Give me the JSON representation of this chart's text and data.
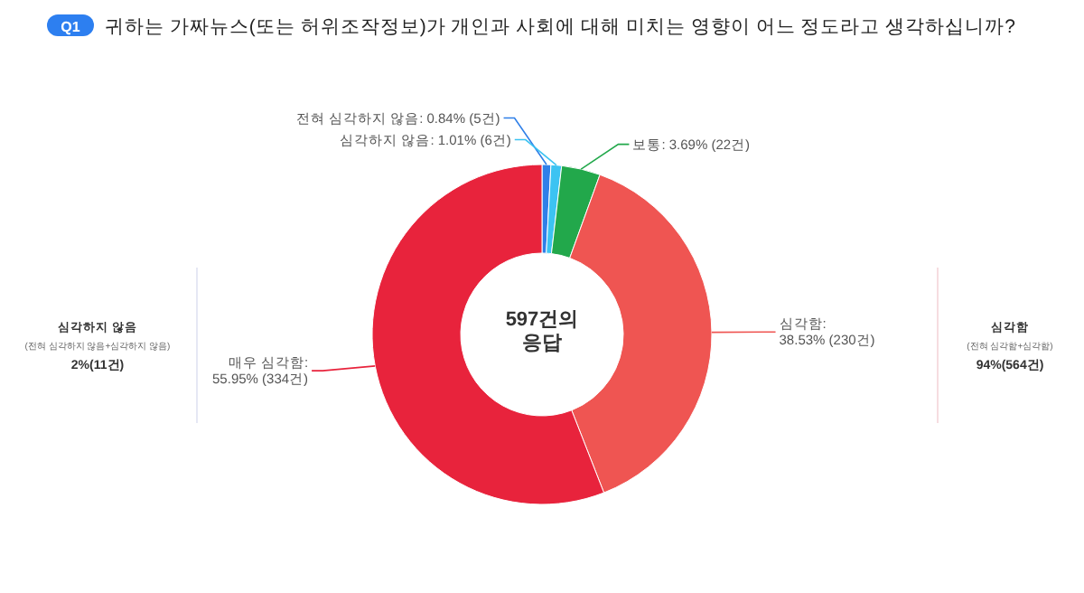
{
  "chart_data": {
    "type": "donut",
    "title": "귀하는 가짜뉴스(또는 허위조작정보)가 개인과 사회에 대해 미치는 영향이 어느 정도라고 생각하십니까?",
    "categories": [
      "전혀 심각하지 않음",
      "심각하지 않음",
      "보통",
      "심각함",
      "매우 심각함"
    ],
    "values": [
      0.84,
      1.01,
      3.69,
      38.53,
      55.95
    ],
    "value_labels": [
      ": 0.84% (5건)",
      ": 1.01% (6건)",
      ": 3.69% (22건)",
      ": 38.53% (230건)",
      ": 55.95% (334건)"
    ],
    "colors": [
      "#2f7fe8",
      "#3cc3f2",
      "#22a84b",
      "#ef5552",
      "#e8233c"
    ],
    "annotations": [
      "Q1",
      "597건의 응답",
      "심각하지 않음",
      "(전혀 심각하지 않음+심각하지 않음)",
      "2%(11건)",
      "심각함",
      "(전혀 심각함+심각함)",
      "94%(564건)"
    ]
  }
}
